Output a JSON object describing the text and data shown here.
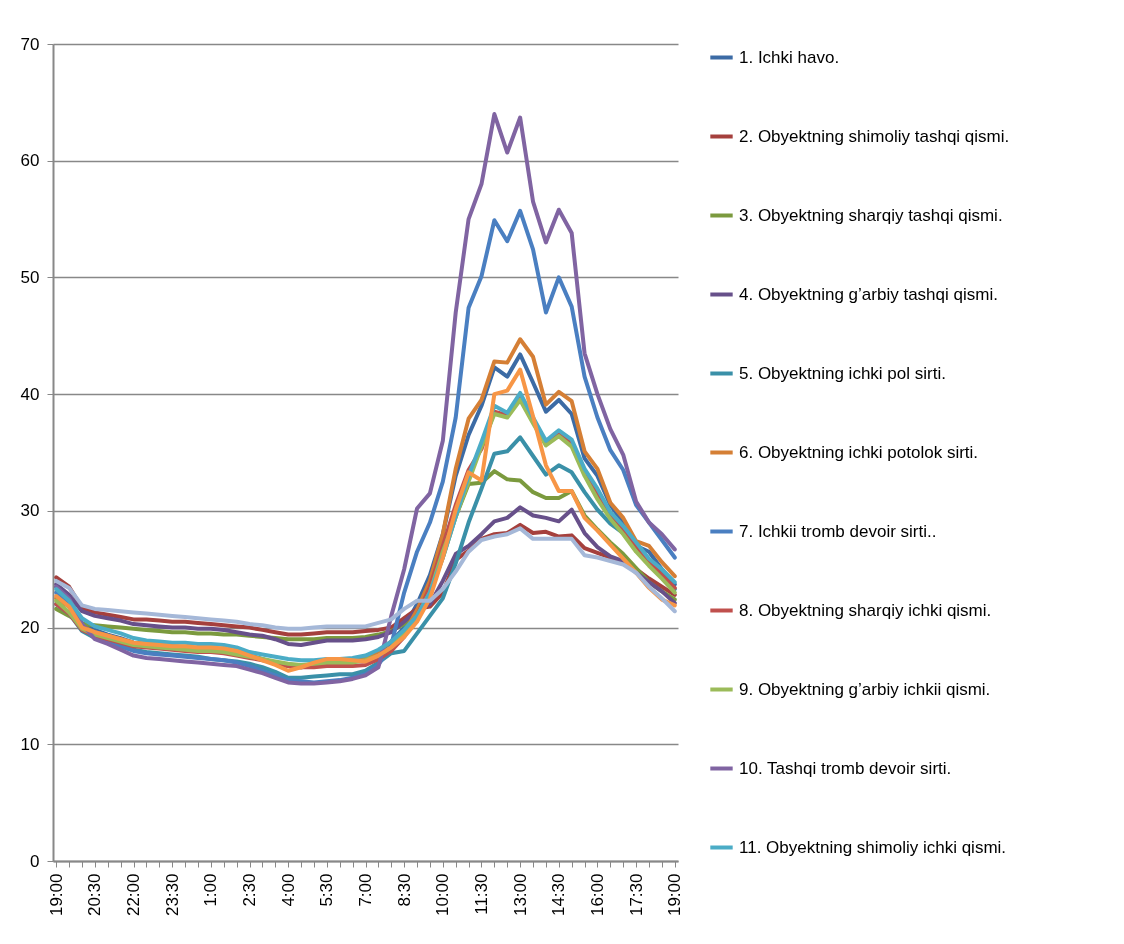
{
  "chart_data": {
    "type": "line",
    "categories": [
      "19:00",
      null,
      null,
      "20:30",
      null,
      null,
      "22:00",
      null,
      null,
      "23:30",
      null,
      null,
      "1:00",
      null,
      null,
      "2:30",
      null,
      null,
      "4:00",
      null,
      null,
      "5:30",
      null,
      null,
      "7:00",
      null,
      null,
      "8:30",
      null,
      null,
      "10:00",
      null,
      null,
      "11:30",
      null,
      null,
      "13:00",
      null,
      null,
      "14:30",
      null,
      null,
      "16:00",
      null,
      null,
      "17:30",
      null,
      null,
      "19:00"
    ],
    "series": [
      {
        "name": "1. Ichki havo.",
        "color": "#3c6ba5",
        "values": [
          23.5,
          22.5,
          20.4,
          19.8,
          19.4,
          19.1,
          18.7,
          18.6,
          18.5,
          18.4,
          18.3,
          18.2,
          18.2,
          18.1,
          17.9,
          17.6,
          17.3,
          17,
          16.7,
          16.6,
          16.7,
          16.9,
          17,
          17.1,
          17.3,
          17.9,
          18.8,
          20,
          22,
          24.5,
          28,
          33,
          36.5,
          39,
          42.3,
          41.5,
          43.4,
          41,
          38.5,
          39.5,
          38.3,
          34.5,
          33,
          30.5,
          29,
          27,
          26.5,
          25,
          23.7
        ]
      },
      {
        "name": "2. Obyektning shimoliy tashqi qismi.",
        "color": "#a5403d",
        "values": [
          24.3,
          23.5,
          21.7,
          21.3,
          21.1,
          20.9,
          20.7,
          20.7,
          20.6,
          20.5,
          20.5,
          20.4,
          20.3,
          20.2,
          20.1,
          20,
          19.8,
          19.6,
          19.4,
          19.4,
          19.5,
          19.6,
          19.6,
          19.6,
          19.7,
          19.8,
          20,
          20.8,
          21.6,
          21.8,
          23,
          25.8,
          26.6,
          27.6,
          28,
          28.1,
          28.8,
          28.1,
          28.2,
          27.8,
          27.9,
          26.8,
          26.4,
          26,
          25.6,
          25,
          24.2,
          23.5,
          22.8
        ]
      },
      {
        "name": "3. Obyektning sharqiy tashqi qismi.",
        "color": "#7b9a3e",
        "values": [
          21.6,
          21,
          20.3,
          20.2,
          20.1,
          20,
          19.9,
          19.8,
          19.7,
          19.6,
          19.6,
          19.5,
          19.5,
          19.4,
          19.4,
          19.3,
          19.2,
          19.1,
          19,
          19,
          19,
          19.1,
          19.1,
          19.1,
          19.2,
          19.4,
          19.7,
          20.3,
          21,
          23,
          26,
          29.5,
          32.3,
          32.4,
          33.4,
          32.7,
          32.6,
          31.6,
          31.1,
          31.1,
          31.7,
          29.6,
          28.4,
          27.3,
          26.3,
          25.1,
          23.9,
          23.1,
          22.4
        ]
      },
      {
        "name": "4. Obyektning g’arbiy tashqi qismi.",
        "color": "#67508a",
        "values": [
          23.7,
          22.8,
          21.4,
          21,
          20.8,
          20.6,
          20.3,
          20.2,
          20.1,
          20,
          20,
          19.9,
          19.9,
          19.8,
          19.6,
          19.4,
          19.3,
          19,
          18.6,
          18.5,
          18.7,
          18.9,
          18.9,
          18.9,
          19,
          19.2,
          19.6,
          20.5,
          21.5,
          22,
          24,
          26.3,
          27,
          28,
          29.1,
          29.4,
          30.3,
          29.6,
          29.4,
          29.1,
          30.1,
          28.1,
          26.9,
          26.1,
          25.7,
          24.7,
          23.9,
          23.1,
          22.1
        ]
      },
      {
        "name": "5. Obyektning ichki pol sirti.",
        "color": "#3a90a8",
        "values": [
          22,
          21.2,
          19.7,
          19.1,
          18.7,
          18.4,
          18.1,
          17.9,
          17.8,
          17.7,
          17.6,
          17.5,
          17.3,
          17.2,
          17.1,
          16.9,
          16.6,
          16.2,
          15.7,
          15.7,
          15.8,
          15.9,
          16,
          16,
          16.3,
          17,
          17.8,
          18,
          19.5,
          21,
          22.5,
          25.5,
          29,
          31.9,
          34.9,
          35.1,
          36.3,
          34.7,
          33.1,
          33.9,
          33.3,
          31.6,
          30.1,
          28.9,
          28.1,
          27,
          25.7,
          24.7,
          23.3
        ]
      },
      {
        "name": "6. Obyektning ichki potolok sirti.",
        "color": "#d57f35",
        "values": [
          22.5,
          21.8,
          20.1,
          19.6,
          19.3,
          19,
          18.7,
          18.6,
          18.5,
          18.4,
          18.3,
          18.2,
          18.2,
          18.1,
          17.9,
          17.6,
          17.3,
          17,
          16.7,
          16.6,
          16.8,
          17,
          17.1,
          17.2,
          17.4,
          18,
          18.8,
          19.5,
          21.5,
          24,
          28,
          33.6,
          37.9,
          39.5,
          42.8,
          42.7,
          44.7,
          43.2,
          39.1,
          40.2,
          39.4,
          35.1,
          33.6,
          30.7,
          29.4,
          27.4,
          27,
          25.6,
          24.4
        ]
      },
      {
        "name": "7. Ichkii tromb devoir sirti..",
        "color": "#4a7fc1",
        "values": [
          23,
          22,
          20,
          19.3,
          18.8,
          18.4,
          18,
          17.8,
          17.7,
          17.6,
          17.5,
          17.4,
          17.3,
          17.2,
          17,
          16.7,
          16.3,
          15.9,
          15.5,
          15.4,
          15.3,
          15.4,
          15.5,
          15.7,
          16,
          16.8,
          18.5,
          23,
          26.5,
          29,
          32.5,
          38,
          47.4,
          50.1,
          54.9,
          53.1,
          55.7,
          52.4,
          47,
          50,
          47.5,
          41.5,
          38,
          35.2,
          33.5,
          30.5,
          29,
          27.5,
          26
        ]
      },
      {
        "name": "8. Obyektning sharqiy ichki qismi.",
        "color": "#c0504d",
        "values": [
          22,
          21.2,
          19.8,
          19.3,
          19,
          18.7,
          18.4,
          18.3,
          18.2,
          18.1,
          18,
          17.9,
          17.9,
          17.8,
          17.6,
          17.4,
          17.2,
          17,
          16.7,
          16.6,
          16.6,
          16.7,
          16.7,
          16.7,
          16.8,
          17.3,
          18,
          19.2,
          21,
          23.5,
          27,
          30.5,
          33.5,
          35.3,
          38.5,
          38.2,
          39.6,
          37.7,
          35.8,
          36.6,
          35.8,
          33.3,
          31.5,
          29.5,
          28.3,
          27,
          25.6,
          24.5,
          23.4
        ]
      },
      {
        "name": "9. Obyektning g’arbiy ichkii qismi.",
        "color": "#9bbb59",
        "values": [
          22.3,
          21.3,
          19.9,
          19.4,
          19.1,
          18.8,
          18.5,
          18.4,
          18.3,
          18.2,
          18.1,
          18,
          18,
          17.9,
          17.7,
          17.5,
          17.3,
          17.1,
          16.9,
          16.8,
          16.9,
          17,
          17,
          17,
          17.2,
          17.6,
          18.3,
          19.5,
          21,
          23,
          26.5,
          29.5,
          32.5,
          35.5,
          38.3,
          38,
          39.5,
          37.5,
          35.6,
          36.4,
          35.5,
          33,
          31,
          29.3,
          28,
          26.5,
          25.3,
          24.2,
          23
        ]
      },
      {
        "name": "10. Tashqi tromb devoir sirti.",
        "color": "#8064a2",
        "values": [
          23.5,
          22.5,
          20.3,
          19,
          18.6,
          18.1,
          17.6,
          17.4,
          17.3,
          17.2,
          17.1,
          17,
          16.9,
          16.8,
          16.7,
          16.4,
          16.1,
          15.7,
          15.3,
          15.2,
          15.2,
          15.3,
          15.4,
          15.6,
          15.9,
          16.6,
          21,
          25,
          30.2,
          31.5,
          36,
          47,
          55,
          58,
          64,
          60.7,
          63.7,
          56.5,
          53,
          55.8,
          53.8,
          43.5,
          40,
          37,
          34.8,
          30.8,
          29,
          28,
          26.7
        ]
      },
      {
        "name": "11. Obyektning shimoliy ichki qismi.",
        "color": "#4bacc6",
        "values": [
          23.3,
          22.3,
          20.8,
          20.1,
          19.8,
          19.5,
          19.1,
          18.9,
          18.8,
          18.7,
          18.7,
          18.6,
          18.6,
          18.5,
          18.3,
          17.9,
          17.7,
          17.5,
          17.3,
          17.2,
          17.2,
          17.3,
          17.3,
          17.4,
          17.6,
          18.1,
          18.8,
          19.8,
          21,
          23,
          26,
          29.5,
          33,
          35.9,
          39,
          38.4,
          40.1,
          38,
          36,
          36.9,
          36.1,
          33.6,
          31.9,
          29.9,
          28.7,
          27.3,
          25.9,
          25,
          23.9
        ]
      },
      {
        "color": "#f79646",
        "values": [
          22.7,
          21.8,
          20,
          19.6,
          19.3,
          19,
          18.7,
          18.6,
          18.5,
          18.4,
          18.4,
          18.3,
          18.3,
          18.2,
          18,
          17.6,
          17.2,
          16.8,
          16.3,
          16.6,
          17,
          17.3,
          17.3,
          17.2,
          17.1,
          17.6,
          18.3,
          19.2,
          20.5,
          22.5,
          26,
          30.1,
          33.3,
          32.6,
          40,
          40.3,
          42.1,
          38.1,
          33.9,
          31.7,
          31.7,
          29.4,
          28.3,
          27.1,
          25.9,
          24.7,
          23.4,
          22.4,
          21.9
        ]
      },
      {
        "color": "#a5b8d8",
        "values": [
          24,
          23.4,
          21.9,
          21.6,
          21.5,
          21.4,
          21.3,
          21.2,
          21.1,
          21,
          20.9,
          20.8,
          20.7,
          20.6,
          20.5,
          20.3,
          20.2,
          20,
          19.9,
          19.9,
          20,
          20.1,
          20.1,
          20.1,
          20.1,
          20.4,
          20.7,
          21.6,
          22.3,
          22.3,
          23.3,
          24.8,
          26.5,
          27.5,
          27.8,
          28,
          28.5,
          27.6,
          27.6,
          27.6,
          27.6,
          26.2,
          26,
          25.7,
          25.4,
          24.7,
          23.5,
          22.5,
          21.4
        ]
      }
    ],
    "ylim": [
      0,
      70
    ],
    "yticks": [
      0,
      10,
      20,
      30,
      40,
      50,
      60,
      70
    ],
    "grid": "y",
    "legend": "right"
  }
}
